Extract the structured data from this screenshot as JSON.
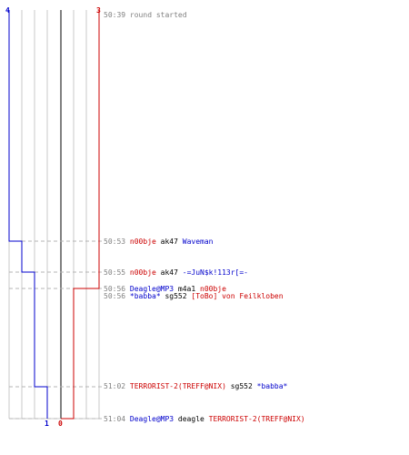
{
  "colors": {
    "ct": "#0000cc",
    "t": "#cc0000",
    "grid": "#c8c8c8",
    "center": "#808080",
    "dash": "#b4b4b4",
    "timestamp": "#808080",
    "weapon": "#000000"
  },
  "counts": {
    "ct_start": "4",
    "t_start": "3",
    "ct_end": "1",
    "t_end": "0"
  },
  "events": [
    {
      "time": "50:39",
      "text": "round started"
    },
    {
      "time": "50:53",
      "killer": "n00bje",
      "weapon": "ak47",
      "victim": "Waveman",
      "killer_side": "t",
      "victim_side": "ct"
    },
    {
      "time": "50:55",
      "killer": "n00bje",
      "weapon": "ak47",
      "victim": "-=JuN$k!113r[=-",
      "killer_side": "t",
      "victim_side": "ct"
    },
    {
      "time": "50:56",
      "killer": "Deagle@MP3",
      "weapon": "m4a1",
      "victim": "n00bje",
      "killer_side": "ct",
      "victim_side": "t"
    },
    {
      "time": "50:56",
      "killer": "*babba*",
      "weapon": "sg552",
      "victim": "[ToBo] von Feilkloben",
      "killer_side": "ct",
      "victim_side": "t"
    },
    {
      "time": "51:02",
      "killer": "TERRORIST-2(TREFF@NIX)",
      "weapon": "sg552",
      "victim": "*babba*",
      "killer_side": "t",
      "victim_side": "ct"
    },
    {
      "time": "51:04",
      "killer": "Deagle@MP3",
      "weapon": "deagle",
      "victim": "TERRORIST-2(TREFF@NIX)",
      "killer_side": "ct",
      "victim_side": "t"
    }
  ]
}
